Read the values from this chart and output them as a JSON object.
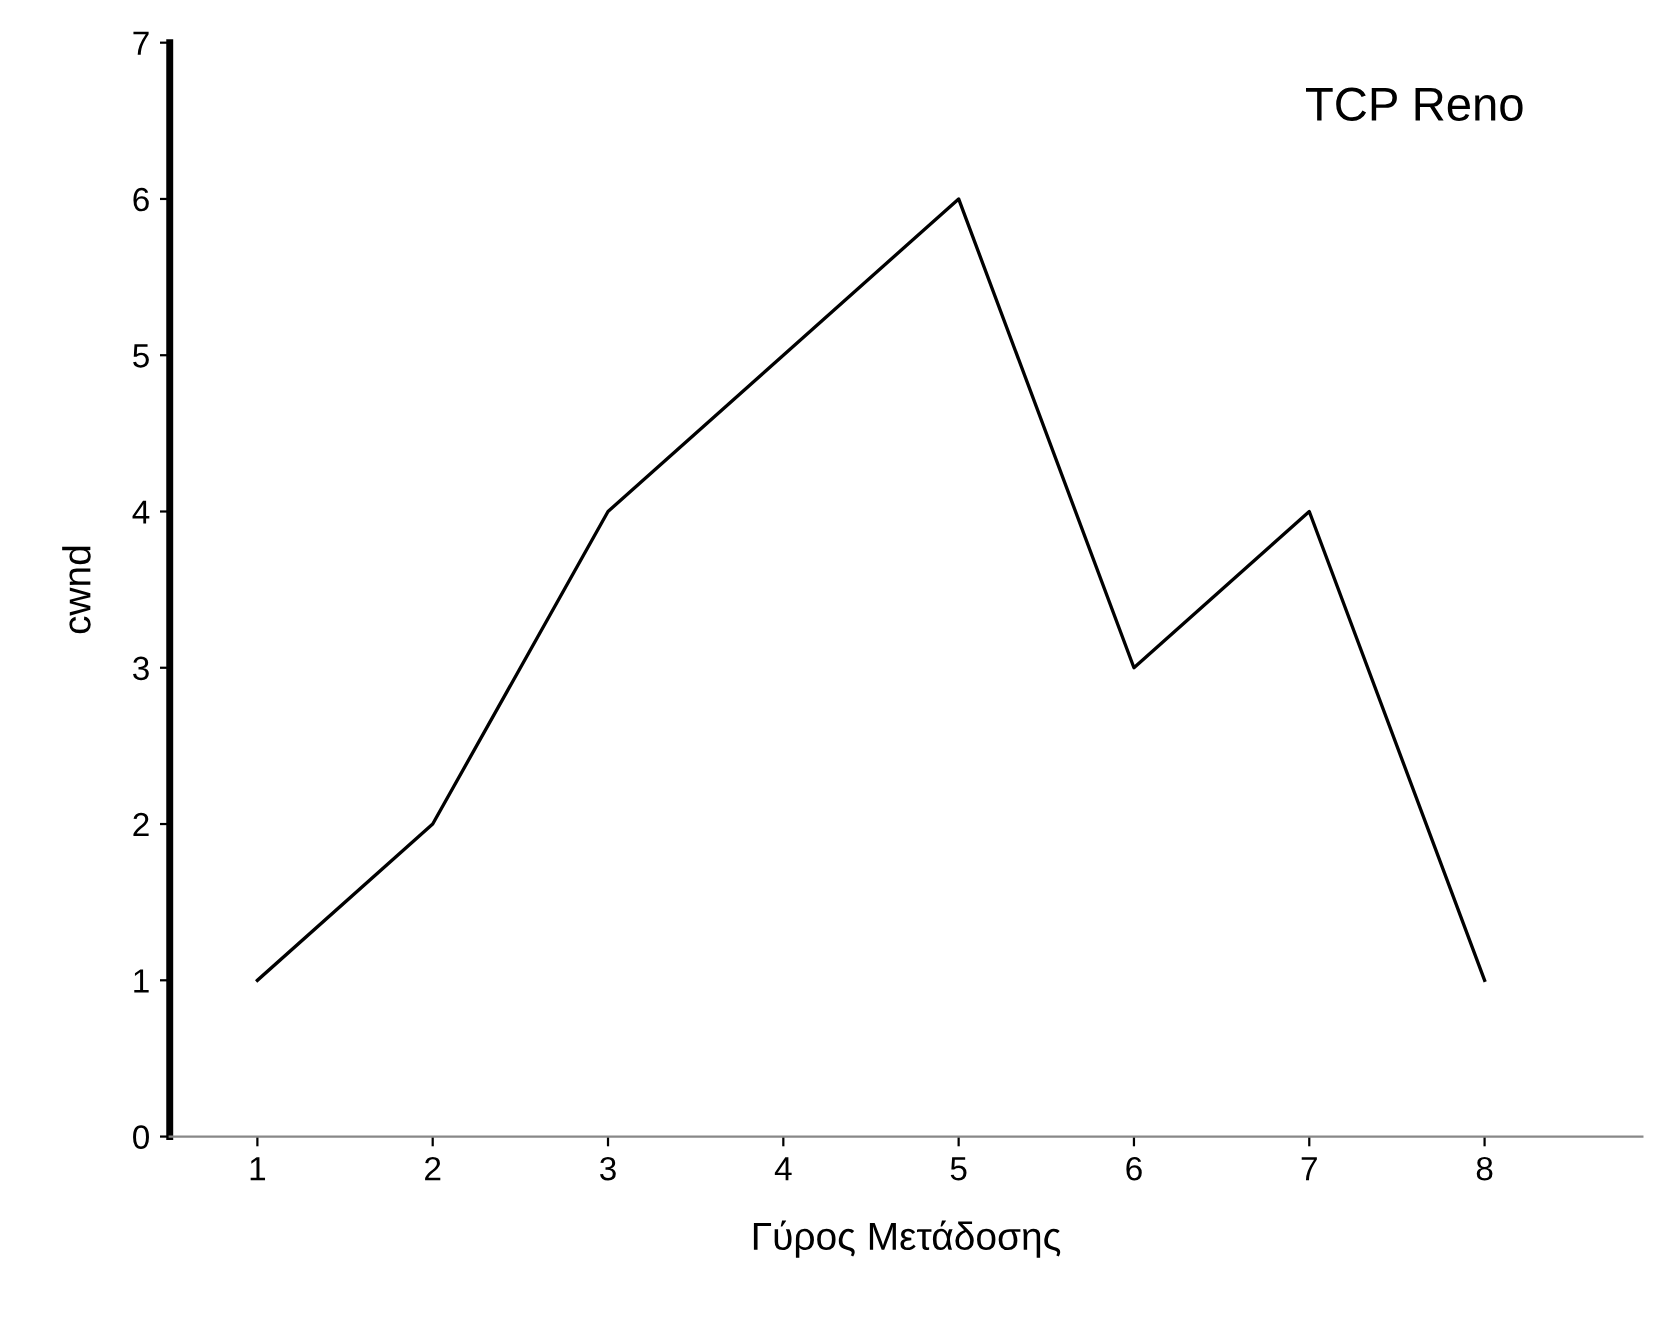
{
  "chart_data": {
    "type": "line",
    "xlabel": "Γύρος Μετάδοσης",
    "ylabel": "cwnd",
    "annotations": [
      "TCP Reno"
    ],
    "x": [
      1,
      2,
      3,
      4,
      5,
      6,
      7,
      8
    ],
    "series": [
      {
        "color": "#000000",
        "values": [
          1,
          2,
          4,
          5,
          6,
          3,
          4,
          1
        ]
      }
    ],
    "xlim": [
      0.5,
      8.9
    ],
    "xticks": [
      1,
      2,
      3,
      4,
      5,
      6,
      7,
      8
    ],
    "ylim": [
      0,
      7
    ],
    "yticks": [
      0,
      1,
      2,
      3,
      4,
      5,
      6,
      7
    ],
    "grid": false,
    "legend": false,
    "marker": "none",
    "line_style": "solid"
  }
}
